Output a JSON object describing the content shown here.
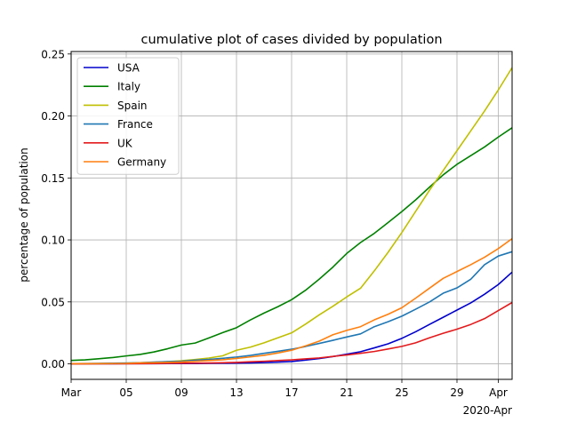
{
  "chart_data": {
    "type": "line",
    "title": "cumulative plot of cases divided by population",
    "xlabel": "",
    "ylabel": "percentage of population",
    "x_offset_label": "2020-Apr",
    "x_start": "2020-03-01",
    "x_end": "2020-04-02",
    "xlim": [
      "2020-03-01",
      "2020-04-02"
    ],
    "ylim": [
      -0.0125,
      0.252
    ],
    "xticks": [
      {
        "date": "2020-03-01",
        "label": "Mar"
      },
      {
        "date": "2020-03-05",
        "label": "05"
      },
      {
        "date": "2020-03-09",
        "label": "09"
      },
      {
        "date": "2020-03-13",
        "label": "13"
      },
      {
        "date": "2020-03-17",
        "label": "17"
      },
      {
        "date": "2020-03-21",
        "label": "21"
      },
      {
        "date": "2020-03-25",
        "label": "25"
      },
      {
        "date": "2020-03-29",
        "label": "29"
      },
      {
        "date": "2020-04-01",
        "label": "Apr"
      }
    ],
    "yticks": [
      {
        "value": 0.0,
        "label": "0.00"
      },
      {
        "value": 0.05,
        "label": "0.05"
      },
      {
        "value": 0.1,
        "label": "0.10"
      },
      {
        "value": 0.15,
        "label": "0.15"
      },
      {
        "value": 0.2,
        "label": "0.20"
      },
      {
        "value": 0.25,
        "label": "0.25"
      }
    ],
    "grid": true,
    "legend_position": "top-left",
    "x": [
      "2020-03-01",
      "2020-03-02",
      "2020-03-03",
      "2020-03-04",
      "2020-03-05",
      "2020-03-06",
      "2020-03-07",
      "2020-03-08",
      "2020-03-09",
      "2020-03-10",
      "2020-03-11",
      "2020-03-12",
      "2020-03-13",
      "2020-03-14",
      "2020-03-15",
      "2020-03-16",
      "2020-03-17",
      "2020-03-18",
      "2020-03-19",
      "2020-03-20",
      "2020-03-21",
      "2020-03-22",
      "2020-03-23",
      "2020-03-24",
      "2020-03-25",
      "2020-03-26",
      "2020-03-27",
      "2020-03-28",
      "2020-03-29",
      "2020-03-30",
      "2020-03-31",
      "2020-04-01",
      "2020-04-02"
    ],
    "series": [
      {
        "name": "USA",
        "color": "#0000cc",
        "values": [
          0.0001,
          0.0001,
          0.0001,
          0.0001,
          0.0002,
          0.0002,
          0.0002,
          0.0003,
          0.0003,
          0.0003,
          0.0004,
          0.0005,
          0.0006,
          0.0008,
          0.0011,
          0.0014,
          0.0019,
          0.003,
          0.0043,
          0.0059,
          0.0078,
          0.0098,
          0.0129,
          0.0162,
          0.0206,
          0.0259,
          0.0318,
          0.0376,
          0.0434,
          0.0492,
          0.0562,
          0.064,
          0.074
        ]
      },
      {
        "name": "Italy",
        "color": "#008000",
        "values": [
          0.0028,
          0.0032,
          0.0041,
          0.0051,
          0.0064,
          0.0076,
          0.0096,
          0.0122,
          0.0152,
          0.0168,
          0.0209,
          0.0252,
          0.0292,
          0.0354,
          0.041,
          0.0461,
          0.0518,
          0.0593,
          0.0683,
          0.0781,
          0.0891,
          0.0979,
          0.1053,
          0.114,
          0.1229,
          0.1323,
          0.1425,
          0.1525,
          0.161,
          0.168,
          0.175,
          0.183,
          0.1905
        ]
      },
      {
        "name": "Spain",
        "color": "#bfbf00",
        "values": [
          0.0002,
          0.0002,
          0.0003,
          0.0005,
          0.0006,
          0.0009,
          0.0013,
          0.0018,
          0.0025,
          0.0035,
          0.0047,
          0.0065,
          0.011,
          0.0135,
          0.017,
          0.021,
          0.025,
          0.032,
          0.0395,
          0.0465,
          0.054,
          0.061,
          0.075,
          0.09,
          0.106,
          0.123,
          0.14,
          0.156,
          0.172,
          0.188,
          0.204,
          0.221,
          0.239
        ]
      },
      {
        "name": "France",
        "color": "#1f77b4",
        "values": [
          0.0002,
          0.0003,
          0.0004,
          0.0005,
          0.0006,
          0.0009,
          0.0014,
          0.0018,
          0.0021,
          0.003,
          0.0036,
          0.0045,
          0.0055,
          0.0068,
          0.0085,
          0.0101,
          0.0118,
          0.014,
          0.0165,
          0.019,
          0.0217,
          0.0242,
          0.03,
          0.034,
          0.0385,
          0.0441,
          0.0499,
          0.057,
          0.0613,
          0.0683,
          0.08,
          0.087,
          0.0905
        ]
      },
      {
        "name": "UK",
        "color": "#e31a1c",
        "values": [
          0.0,
          0.0,
          0.0001,
          0.0001,
          0.0001,
          0.0002,
          0.0003,
          0.0004,
          0.0005,
          0.0006,
          0.0007,
          0.0009,
          0.0012,
          0.0017,
          0.0021,
          0.0027,
          0.0032,
          0.004,
          0.0048,
          0.006,
          0.0072,
          0.0085,
          0.01,
          0.012,
          0.0141,
          0.017,
          0.021,
          0.0247,
          0.028,
          0.0318,
          0.0365,
          0.043,
          0.0495
        ]
      },
      {
        "name": "Germany",
        "color": "#ff7f0e",
        "values": [
          0.0002,
          0.0002,
          0.0002,
          0.0003,
          0.0004,
          0.0008,
          0.001,
          0.0012,
          0.0015,
          0.0021,
          0.0027,
          0.0033,
          0.0044,
          0.0056,
          0.0069,
          0.0088,
          0.011,
          0.0145,
          0.0183,
          0.0235,
          0.027,
          0.03,
          0.0355,
          0.04,
          0.0453,
          0.053,
          0.061,
          0.069,
          0.0745,
          0.08,
          0.086,
          0.093,
          0.101
        ]
      }
    ]
  }
}
